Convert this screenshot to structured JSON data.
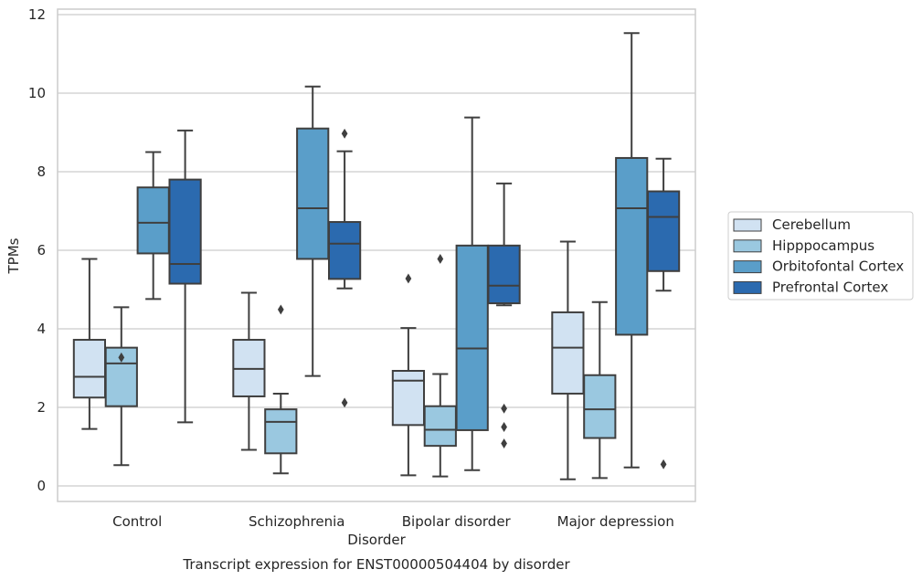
{
  "chart_data": {
    "type": "box",
    "title": "",
    "caption": "Transcript expression for ENST00000504404 by disorder",
    "xlabel": "Disorder",
    "ylabel": "TPMs",
    "ylim": [
      -0.35,
      12.15
    ],
    "yticks": [
      0,
      2,
      4,
      6,
      8,
      10,
      12
    ],
    "grid": true,
    "legend_position": "right",
    "categories": [
      "Control",
      "Schizophrenia",
      "Bipolar disorder",
      "Major depression"
    ],
    "series": [
      {
        "name": "Cerebellum",
        "color": "#d1e2f2",
        "boxes": [
          {
            "whisker_low": 1.45,
            "q1": 2.25,
            "median": 2.78,
            "q3": 3.72,
            "whisker_high": 5.78,
            "outliers": []
          },
          {
            "whisker_low": 0.92,
            "q1": 2.28,
            "median": 2.98,
            "q3": 3.72,
            "whisker_high": 4.92,
            "outliers": []
          },
          {
            "whisker_low": 0.27,
            "q1": 1.55,
            "median": 2.68,
            "q3": 2.93,
            "whisker_high": 4.02,
            "outliers": [
              5.28
            ]
          },
          {
            "whisker_low": 0.17,
            "q1": 2.35,
            "median": 3.52,
            "q3": 4.42,
            "whisker_high": 6.22,
            "outliers": []
          }
        ]
      },
      {
        "name": "Hipppocampus",
        "color": "#9ac8e0",
        "boxes": [
          {
            "whisker_low": 0.53,
            "q1": 2.03,
            "median": 3.12,
            "q3": 3.52,
            "whisker_high": 4.55,
            "outliers": [
              3.27
            ]
          },
          {
            "whisker_low": 0.32,
            "q1": 0.83,
            "median": 1.63,
            "q3": 1.95,
            "whisker_high": 2.35,
            "outliers": [
              4.49
            ]
          },
          {
            "whisker_low": 0.24,
            "q1": 1.02,
            "median": 1.43,
            "q3": 2.03,
            "whisker_high": 2.85,
            "outliers": [
              5.78
            ]
          },
          {
            "whisker_low": 0.2,
            "q1": 1.22,
            "median": 1.95,
            "q3": 2.82,
            "whisker_high": 4.68,
            "outliers": []
          }
        ]
      },
      {
        "name": "Orbitofontal Cortex",
        "color": "#5a9ec9",
        "boxes": [
          {
            "whisker_low": 4.76,
            "q1": 5.92,
            "median": 6.7,
            "q3": 7.6,
            "whisker_high": 8.5,
            "outliers": []
          },
          {
            "whisker_low": 2.8,
            "q1": 5.78,
            "median": 7.07,
            "q3": 9.1,
            "whisker_high": 10.17,
            "outliers": []
          },
          {
            "whisker_low": 0.4,
            "q1": 1.42,
            "median": 3.5,
            "q3": 6.12,
            "whisker_high": 9.38,
            "outliers": []
          },
          {
            "whisker_low": 0.47,
            "q1": 3.85,
            "median": 7.07,
            "q3": 8.35,
            "whisker_high": 11.53,
            "outliers": []
          }
        ]
      },
      {
        "name": "Prefrontal Cortex",
        "color": "#2b6aaf",
        "boxes": [
          {
            "whisker_low": 1.62,
            "q1": 5.15,
            "median": 5.65,
            "q3": 7.8,
            "whisker_high": 9.05,
            "outliers": []
          },
          {
            "whisker_low": 5.03,
            "q1": 5.27,
            "median": 6.17,
            "q3": 6.72,
            "whisker_high": 8.52,
            "outliers": [
              8.97,
              2.12
            ]
          },
          {
            "whisker_low": 4.6,
            "q1": 4.65,
            "median": 5.1,
            "q3": 6.12,
            "whisker_high": 7.7,
            "outliers": [
              1.97,
              1.5,
              1.08
            ]
          },
          {
            "whisker_low": 4.97,
            "q1": 5.47,
            "median": 6.85,
            "q3": 7.5,
            "whisker_high": 8.33,
            "outliers": [
              0.55
            ]
          }
        ]
      }
    ]
  }
}
